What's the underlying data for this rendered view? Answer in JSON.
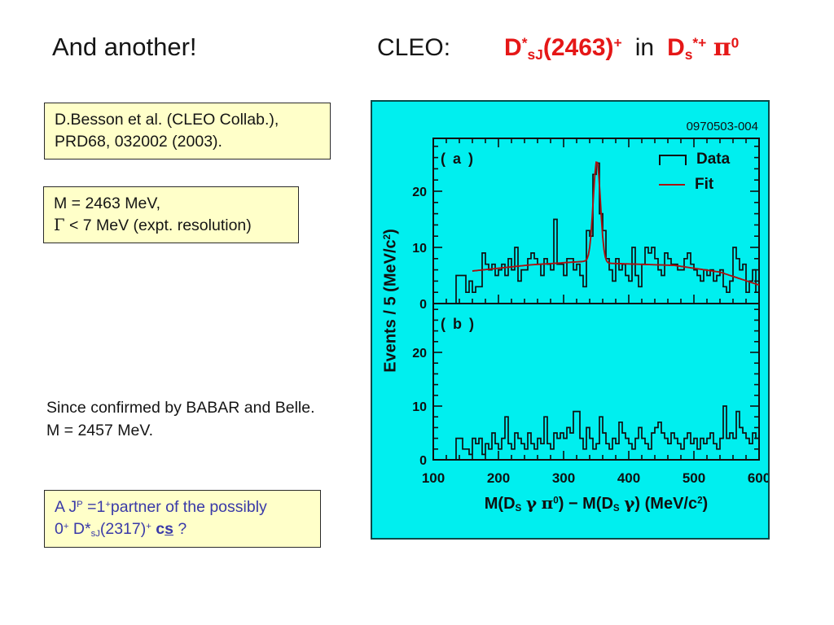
{
  "title": {
    "left": "And another!",
    "cleo": "CLEO:",
    "f1": [
      {
        "t": "D"
      },
      {
        "t": "*",
        "s": "sup"
      },
      {
        "t": "sJ",
        "s": "sub"
      },
      {
        "t": "(2463)"
      },
      {
        "t": "+",
        "s": "sup"
      }
    ],
    "mid": "in",
    "f2": [
      {
        "t": "D"
      },
      {
        "t": "s",
        "s": "sub"
      },
      {
        "t": "*+",
        "s": "sup"
      },
      {
        "t": " "
      },
      {
        "t": "π",
        "s": "greek"
      },
      {
        "t": "0",
        "s": "sup"
      }
    ]
  },
  "ref_box": {
    "line1": "D.Besson et al. (CLEO Collab.),",
    "line2": "PRD68, 032002 (2003)."
  },
  "mass_box": {
    "line1": "M = 2463 MeV,",
    "line2": [
      {
        "t": "Γ",
        "s": "greek"
      },
      {
        "t": " < 7 MeV (expt. resolution)"
      }
    ]
  },
  "confirm_text": {
    "line1": "Since confirmed by BABAR and Belle.",
    "line2": "M = 2457 MeV."
  },
  "partner_box": {
    "line1": [
      {
        "t": "A J"
      },
      {
        "t": "P",
        "s": "sup"
      },
      {
        "t": " =1"
      },
      {
        "t": "+",
        "s": "sup"
      },
      {
        "t": "partner of the possibly"
      }
    ],
    "line2": [
      {
        "t": "0"
      },
      {
        "t": "+",
        "s": "sup"
      },
      {
        "t": " D*"
      },
      {
        "t": "sJ",
        "s": "sub"
      },
      {
        "t": "(2317)"
      },
      {
        "t": "+",
        "s": "sup"
      },
      {
        "t": " "
      },
      {
        "t": "c",
        "s": "b"
      },
      {
        "t": "s",
        "s": "bu"
      },
      {
        "t": " ?"
      }
    ]
  },
  "chart_data": {
    "type": "bar",
    "subtype": "two-panel stepped histogram",
    "code_label": "0970503-004",
    "x_start": 100,
    "bin_width": 5,
    "x_ticks": [
      100,
      200,
      300,
      400,
      500,
      600
    ],
    "xlim": [
      100,
      600
    ],
    "ylim": [
      0,
      29
    ],
    "grid": false,
    "legend_position": "top-right of panel a",
    "xlabel": [
      {
        "t": "M(D"
      },
      {
        "t": "S",
        "s": "sub"
      },
      {
        "t": " "
      },
      {
        "t": "γ",
        "s": "greek"
      },
      {
        "t": " "
      },
      {
        "t": "π",
        "s": "greek"
      },
      {
        "t": "0",
        "s": "sup"
      },
      {
        "t": ") − M(D"
      },
      {
        "t": "S",
        "s": "sub"
      },
      {
        "t": " "
      },
      {
        "t": "γ",
        "s": "greek"
      },
      {
        "t": ") (MeV/c"
      },
      {
        "t": "2",
        "s": "sup"
      },
      {
        "t": ")"
      }
    ],
    "ylabel": [
      {
        "t": "Events / 5 (MeV/c"
      },
      {
        "t": "2",
        "s": "sup"
      },
      {
        "t": ")"
      }
    ],
    "legend": [
      {
        "label": "Data",
        "type": "histogram"
      },
      {
        "label": "Fit",
        "type": "line"
      }
    ],
    "colors": {
      "plot_bg": "#00efef",
      "hist": "#101010",
      "fit": "#aa1111",
      "frame": "#101010"
    },
    "panels": [
      {
        "label": "( a )",
        "y_ticks": [
          0,
          10,
          20
        ],
        "values": [
          0,
          0,
          0,
          0,
          0,
          0,
          0,
          5,
          5,
          5,
          2,
          4,
          2,
          3,
          3,
          9,
          7,
          6,
          7,
          5,
          6,
          7,
          5,
          8,
          6,
          10,
          4,
          6,
          6,
          8,
          9,
          8,
          7,
          5,
          8,
          7,
          6,
          15,
          7,
          7,
          5,
          8,
          8,
          6,
          7,
          5,
          3,
          13,
          12,
          23,
          25,
          16,
          13,
          8,
          6,
          4,
          8,
          6,
          7,
          5,
          4,
          10,
          5,
          3,
          7,
          10,
          9,
          10,
          8,
          6,
          5,
          9,
          8,
          7,
          7,
          6,
          6,
          8,
          9,
          7,
          6,
          5,
          4,
          6,
          5,
          6,
          4,
          5,
          6,
          3,
          2,
          4,
          10,
          8,
          6,
          7,
          2,
          4,
          6,
          2
        ],
        "fit": {
          "bg": [
            [
              160,
              5.8
            ],
            [
              250,
              6.9
            ],
            [
              345,
              7.6
            ],
            [
              360,
              7.2
            ],
            [
              470,
              6.8
            ],
            [
              540,
              5.6
            ],
            [
              600,
              3.3
            ]
          ],
          "peak_center": 351,
          "peak_sigma": 5.5,
          "peak_amp": 18
        }
      },
      {
        "label": "( b )",
        "y_ticks": [
          0,
          10,
          20
        ],
        "values": [
          0,
          0,
          0,
          0,
          0,
          0,
          0,
          4,
          4,
          2,
          2,
          1,
          4,
          3,
          4,
          1,
          3,
          2,
          5,
          3,
          2,
          4,
          8,
          3,
          2,
          5,
          4,
          3,
          2,
          5,
          3,
          2,
          4,
          3,
          8,
          3,
          2,
          5,
          4,
          5,
          4,
          6,
          5,
          9,
          9,
          4,
          2,
          6,
          4,
          2,
          3,
          8,
          5,
          3,
          2,
          4,
          3,
          7,
          5,
          4,
          3,
          2,
          4,
          6,
          4,
          3,
          2,
          5,
          6,
          7,
          5,
          4,
          3,
          5,
          4,
          3,
          2,
          4,
          5,
          3,
          4,
          2,
          4,
          3,
          4,
          5,
          3,
          2,
          4,
          10,
          4,
          5,
          4,
          9,
          6,
          5,
          4,
          3,
          5,
          4
        ]
      }
    ]
  }
}
